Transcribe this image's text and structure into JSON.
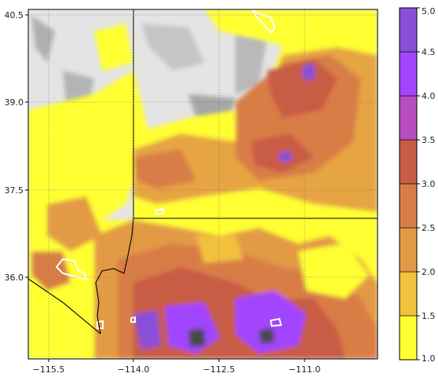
{
  "map": {
    "x_ticks": [
      "−115.5",
      "−114.0",
      "−112.5",
      "−111.0"
    ],
    "y_ticks": [
      "40.5",
      "39.0",
      "37.5",
      "36.0"
    ],
    "x_tick_values": [
      -115.5,
      -114.0,
      -112.5,
      -111.0
    ],
    "y_tick_values": [
      40.5,
      39.0,
      37.5,
      36.0
    ],
    "lon_range": [
      -116.0,
      -110.0
    ],
    "lat_range": [
      34.6,
      40.6
    ],
    "grid": true
  },
  "colorbar": {
    "ticks": [
      "1.0",
      "1.5",
      "2.0",
      "2.5",
      "3.0",
      "3.5",
      "4.0",
      "4.5",
      "5.0"
    ],
    "levels": [
      1.0,
      1.5,
      2.0,
      2.5,
      3.0,
      3.5,
      4.0,
      4.5,
      5.0
    ],
    "colors": [
      "#ffff33",
      "#f2c23c",
      "#e39a45",
      "#d97d46",
      "#c95c44",
      "#b84dc0",
      "#a245ff",
      "#8a4fd9",
      "#4a4a4a"
    ]
  },
  "colors": {
    "terrain_light": "#e4e4e4",
    "terrain_dark": "#4a4a4a",
    "boundary": "#000000",
    "contour": "#ffffff"
  }
}
